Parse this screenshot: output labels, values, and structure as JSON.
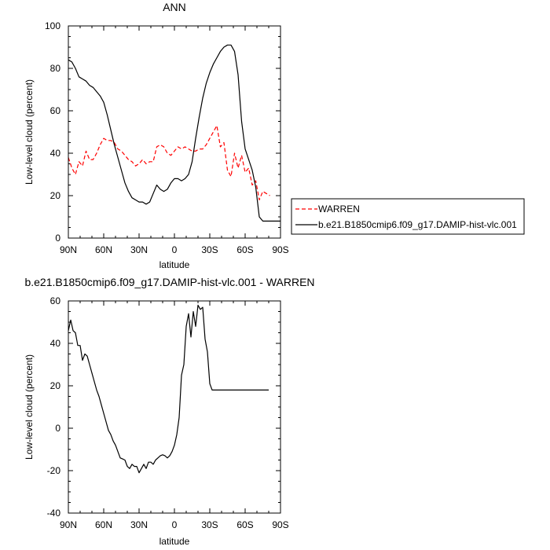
{
  "chart_data": [
    {
      "type": "line",
      "title": "ANN",
      "xlabel": "latitude",
      "ylabel": "Low-level cloud (percent)",
      "xlim": [
        90,
        -90
      ],
      "ylim": [
        0,
        100
      ],
      "x_tick_values": [
        90,
        60,
        30,
        0,
        -30,
        -60,
        -90
      ],
      "x_tick_labels": [
        "90N",
        "60N",
        "30N",
        "0",
        "30S",
        "60S",
        "90S"
      ],
      "y_tick_values": [
        0,
        20,
        40,
        60,
        80,
        100
      ],
      "y_tick_labels": [
        "0",
        "20",
        "40",
        "60",
        "80",
        "100"
      ],
      "grid": false,
      "legend_position": "right-bottom, outside plot",
      "series": [
        {
          "name": "WARREN",
          "color": "#ff0000",
          "dash": "dashed",
          "x": [
            90,
            87,
            84,
            81,
            78,
            75,
            72,
            69,
            66,
            63,
            60,
            57,
            54,
            51,
            48,
            45,
            42,
            39,
            36,
            33,
            30,
            27,
            24,
            21,
            18,
            15,
            12,
            9,
            6,
            3,
            0,
            -3,
            -6,
            -9,
            -12,
            -15,
            -18,
            -21,
            -24,
            -27,
            -30,
            -33,
            -36,
            -39,
            -42,
            -45,
            -48,
            -51,
            -54,
            -57,
            -60,
            -63,
            -66,
            -69,
            -72,
            -75,
            -78,
            -81
          ],
          "y": [
            38,
            33,
            30,
            36,
            34,
            41,
            37,
            37,
            40,
            44,
            47,
            46,
            46,
            45,
            42,
            41,
            39,
            37,
            36,
            34,
            35,
            37,
            35,
            36,
            36,
            43,
            44,
            43,
            40,
            39,
            41,
            43,
            42,
            43,
            42,
            41,
            41,
            42,
            42,
            44,
            47,
            50,
            53,
            43,
            45,
            32,
            29,
            40,
            33,
            39,
            31,
            33,
            25,
            27,
            18,
            22,
            21,
            20
          ]
        },
        {
          "name": "b.e21.B1850cmip6.f09_g17.DAMIP-hist-vlc.001",
          "color": "#000000",
          "dash": "solid",
          "x": [
            90,
            87,
            84,
            81,
            78,
            75,
            72,
            69,
            66,
            63,
            60,
            57,
            54,
            51,
            48,
            45,
            42,
            39,
            36,
            33,
            30,
            27,
            24,
            21,
            18,
            15,
            12,
            9,
            6,
            3,
            0,
            -3,
            -6,
            -9,
            -12,
            -15,
            -18,
            -21,
            -24,
            -27,
            -30,
            -33,
            -36,
            -39,
            -42,
            -45,
            -48,
            -51,
            -54,
            -57,
            -60,
            -63,
            -66,
            -69,
            -72,
            -75,
            -78,
            -81,
            -84,
            -87,
            -90
          ],
          "y": [
            84,
            83,
            80,
            76,
            75,
            74,
            72,
            71,
            69,
            67,
            64,
            58,
            51,
            44,
            38,
            32,
            26,
            22,
            19,
            18,
            17,
            17,
            16,
            17,
            21,
            25,
            23,
            22,
            23,
            26,
            28,
            28,
            27,
            28,
            30,
            36,
            47,
            57,
            66,
            73,
            78,
            82,
            85,
            88,
            90,
            91,
            91,
            88,
            77,
            55,
            42,
            37,
            32,
            24,
            10,
            8,
            8,
            8,
            8,
            8,
            8
          ]
        }
      ]
    },
    {
      "type": "line",
      "title": "b.e21.B1850cmip6.f09_g17.DAMIP-hist-vlc.001 - WARREN",
      "xlabel": "latitude",
      "ylabel": "Low-level cloud (percent)",
      "xlim": [
        90,
        -90
      ],
      "ylim": [
        -40,
        60
      ],
      "x_tick_values": [
        90,
        60,
        30,
        0,
        -30,
        -60,
        -90
      ],
      "x_tick_labels": [
        "90N",
        "60N",
        "30N",
        "0",
        "30S",
        "60S",
        "90S"
      ],
      "y_tick_values": [
        -40,
        -20,
        0,
        20,
        40,
        60
      ],
      "y_tick_labels": [
        "-40",
        "-20",
        "0",
        "20",
        "40",
        "60"
      ],
      "grid": false,
      "series": [
        {
          "color": "#000000",
          "dash": "solid",
          "x": [
            90,
            88,
            86,
            84,
            82,
            80,
            78,
            76,
            74,
            72,
            70,
            68,
            66,
            64,
            62,
            60,
            58,
            56,
            54,
            52,
            50,
            48,
            46,
            44,
            42,
            40,
            38,
            36,
            34,
            32,
            30,
            28,
            26,
            24,
            22,
            20,
            18,
            16,
            14,
            12,
            10,
            8,
            6,
            4,
            2,
            0,
            -2,
            -4,
            -6,
            -8,
            -10,
            -12,
            -14,
            -16,
            -18,
            -20,
            -22,
            -24,
            -26,
            -28,
            -30,
            -32,
            -34,
            -36,
            -38,
            -40,
            -42,
            -44,
            -46,
            -48,
            -50,
            -52,
            -54,
            -56,
            -58,
            -60,
            -62,
            -64,
            -66,
            -68,
            -70,
            -72,
            -74,
            -76,
            -78,
            -80
          ],
          "y": [
            46,
            51,
            46,
            45,
            39,
            39,
            32,
            35,
            34,
            30,
            26,
            22,
            18,
            15,
            11,
            7,
            3,
            -1,
            -3,
            -6,
            -8,
            -11,
            -14,
            -14.5,
            -15,
            -18,
            -19,
            -17,
            -18,
            -18,
            -21,
            -19,
            -17,
            -19,
            -16,
            -16,
            -17,
            -15,
            -14,
            -13,
            -12.5,
            -13,
            -14,
            -13,
            -11,
            -8,
            -3,
            5,
            25,
            30,
            48,
            54,
            43,
            55,
            48,
            58,
            56,
            57,
            42,
            36,
            21,
            18,
            18,
            18,
            18,
            18,
            18,
            18,
            18,
            18,
            18,
            18,
            18,
            18,
            18,
            18,
            18,
            18,
            18,
            18,
            18,
            18,
            18,
            18,
            18,
            18
          ]
        }
      ]
    }
  ]
}
